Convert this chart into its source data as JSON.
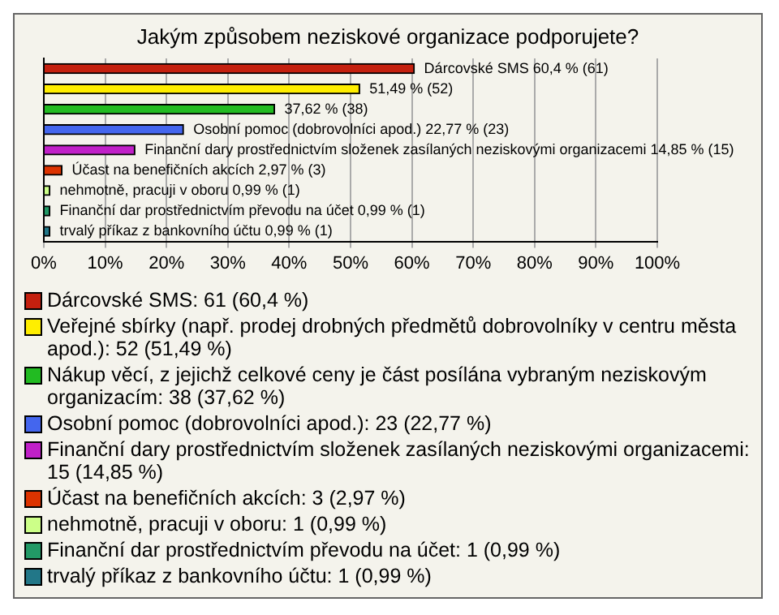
{
  "chart_data": {
    "type": "bar",
    "orientation": "horizontal",
    "title": "Jakým způsobem neziskové organizace podporujete?",
    "categories": [
      null,
      null,
      null,
      null,
      null,
      null,
      null,
      null,
      null
    ],
    "series": [
      {
        "name": "Dárcovské SMS: 61 (60,4 %)",
        "color": "#c4200f",
        "values": [
          60.4,
          null,
          null,
          null,
          null,
          null,
          null,
          null,
          null
        ],
        "value_labels": [
          "Dárcovské SMS 60,4 % (61)",
          null,
          null,
          null,
          null,
          null,
          null,
          null,
          null
        ]
      },
      {
        "name": "Veřejné sbírky (např. prodej drobných předmětů dobrovolníky v centru města apod.): 52 (51,49 %)",
        "color": "#ffee00",
        "values": [
          null,
          51.49,
          null,
          null,
          null,
          null,
          null,
          null,
          null
        ],
        "value_labels": [
          null,
          "51,49 % (52)",
          null,
          null,
          null,
          null,
          null,
          null,
          null
        ]
      },
      {
        "name": "Nákup věcí, z jejichž celkové ceny je část posílána vybraným neziskovým organizacím: 38 (37,62 %)",
        "color": "#22bb22",
        "values": [
          null,
          null,
          37.62,
          null,
          null,
          null,
          null,
          null,
          null
        ],
        "value_labels": [
          null,
          null,
          "37,62 % (38)",
          null,
          null,
          null,
          null,
          null,
          null
        ]
      },
      {
        "name": "Osobní pomoc (dobrovolníci apod.): 23 (22,77 %)",
        "color": "#4466ee",
        "values": [
          null,
          null,
          null,
          22.77,
          null,
          null,
          null,
          null,
          null
        ],
        "value_labels": [
          null,
          null,
          null,
          "Osobní pomoc (dobrovolníci apod.) 22,77 % (23)",
          null,
          null,
          null,
          null,
          null
        ]
      },
      {
        "name": "Finanční dary prostřednictvím složenek zasílaných neziskovými organizacemi: 15 (14,85 %)",
        "color": "#c020c8",
        "values": [
          null,
          null,
          null,
          null,
          14.85,
          null,
          null,
          null,
          null
        ],
        "value_labels": [
          null,
          null,
          null,
          null,
          "Finanční dary prostřednictvím složenek zasílaných neziskovými organizacemi 14,85 % (15)",
          null,
          null,
          null,
          null
        ]
      },
      {
        "name": "Účast na benefičních akcích: 3 (2,97 %)",
        "color": "#dd3300",
        "values": [
          null,
          null,
          null,
          null,
          null,
          2.97,
          null,
          null,
          null
        ],
        "value_labels": [
          null,
          null,
          null,
          null,
          null,
          "Účast na benefičních akcích 2,97 % (3)",
          null,
          null,
          null
        ]
      },
      {
        "name": "nehmotně, pracuji v oboru: 1 (0,99 %)",
        "color": "#ccff88",
        "values": [
          null,
          null,
          null,
          null,
          null,
          null,
          0.99,
          null,
          null
        ],
        "value_labels": [
          null,
          null,
          null,
          null,
          null,
          null,
          "nehmotně, pracuji v oboru 0,99 % (1)",
          null,
          null
        ]
      },
      {
        "name": "Finanční dar prostřednictvím převodu na účet: 1 (0,99 %)",
        "color": "#229966",
        "values": [
          null,
          null,
          null,
          null,
          null,
          null,
          null,
          0.99,
          null
        ],
        "value_labels": [
          null,
          null,
          null,
          null,
          null,
          null,
          null,
          "Finanční dar prostřednictvím převodu na účet 0,99 % (1)",
          null
        ]
      },
      {
        "name": "trvalý příkaz z bankovního účtu: 1 (0,99 %)",
        "color": "#227788",
        "values": [
          null,
          null,
          null,
          null,
          null,
          null,
          null,
          null,
          0.99
        ],
        "value_labels": [
          null,
          null,
          null,
          null,
          null,
          null,
          null,
          null,
          "trvalý příkaz z bankovního účtu 0,99 % (1)"
        ]
      }
    ],
    "xlim": [
      0,
      100
    ],
    "xticks": [
      {
        "value": 0,
        "label": "0%"
      },
      {
        "value": 10,
        "label": "10%"
      },
      {
        "value": 20,
        "label": "20%"
      },
      {
        "value": 30,
        "label": "30%"
      },
      {
        "value": 40,
        "label": "40%"
      },
      {
        "value": 50,
        "label": "50%"
      },
      {
        "value": 60,
        "label": "60%"
      },
      {
        "value": 70,
        "label": "70%"
      },
      {
        "value": 80,
        "label": "80%"
      },
      {
        "value": 90,
        "label": "90%"
      },
      {
        "value": 100,
        "label": "100%"
      }
    ],
    "grid": "x",
    "legend": "bottom",
    "tick_labels": "x"
  }
}
